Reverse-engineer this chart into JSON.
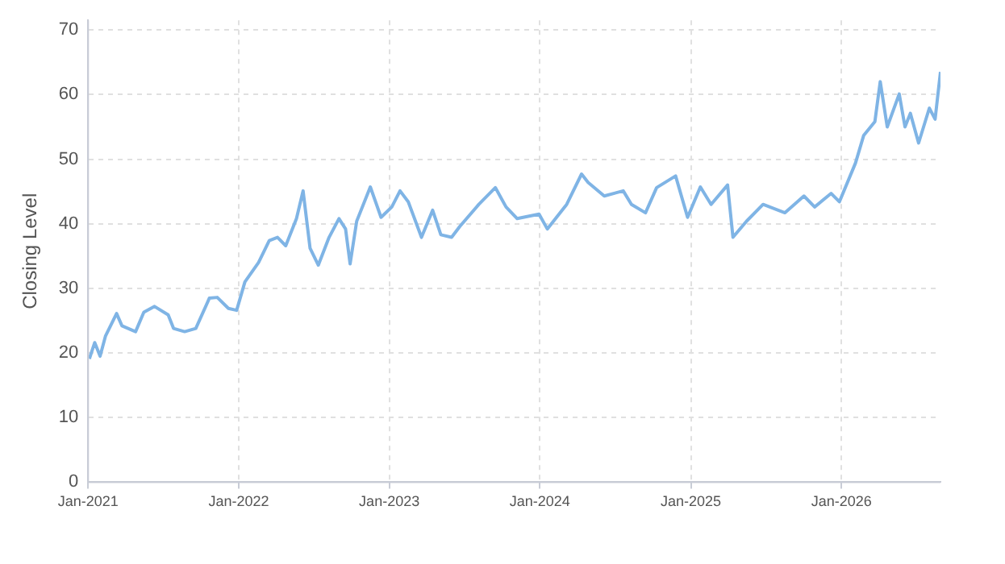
{
  "chart_data": {
    "type": "line",
    "ylabel": "Closing Level",
    "x": [
      "2021-01-04",
      "2021-01-17",
      "2021-01-30",
      "2021-02-12",
      "2021-03-11",
      "2021-03-24",
      "2021-04-26",
      "2021-05-16",
      "2021-06-11",
      "2021-07-14",
      "2021-07-27",
      "2021-08-23",
      "2021-09-19",
      "2021-10-22",
      "2021-11-10",
      "2021-12-07",
      "2021-12-27",
      "2022-01-16",
      "2022-02-18",
      "2022-03-16",
      "2022-04-05",
      "2022-04-25",
      "2022-05-21",
      "2022-06-06",
      "2022-06-23",
      "2022-07-13",
      "2022-08-08",
      "2022-09-01",
      "2022-09-17",
      "2022-09-28",
      "2022-10-14",
      "2022-11-16",
      "2022-12-12",
      "2023-01-07",
      "2023-01-27",
      "2023-02-16",
      "2023-03-20",
      "2023-04-16",
      "2023-05-06",
      "2023-06-01",
      "2023-06-21",
      "2023-08-06",
      "2023-09-15",
      "2023-10-11",
      "2023-11-07",
      "2023-12-30",
      "2024-01-19",
      "2024-03-06",
      "2024-04-11",
      "2024-04-27",
      "2024-06-05",
      "2024-07-21",
      "2024-08-10",
      "2024-09-13",
      "2024-10-10",
      "2024-11-25",
      "2024-12-24",
      "2025-01-24",
      "2025-02-19",
      "2025-03-31",
      "2025-04-13",
      "2025-05-16",
      "2025-06-25",
      "2025-08-17",
      "2025-10-02",
      "2025-10-28",
      "2025-12-07",
      "2025-12-27",
      "2026-02-04",
      "2026-02-24",
      "2026-03-23",
      "2026-04-05",
      "2026-04-22",
      "2026-05-21",
      "2026-06-04",
      "2026-06-17",
      "2026-07-07",
      "2026-08-02",
      "2026-08-16",
      "2026-08-29"
    ],
    "series": [
      {
        "color": "#7fb4e5",
        "values": [
          19.1,
          21.6,
          19.5,
          22.6,
          26.1,
          24.2,
          23.3,
          26.3,
          27.2,
          25.9,
          23.8,
          23.3,
          23.8,
          28.5,
          28.6,
          26.9,
          26.6,
          31.0,
          34.0,
          37.4,
          37.9,
          36.6,
          40.8,
          45.1,
          36.2,
          33.6,
          37.9,
          40.8,
          39.2,
          33.8,
          40.4,
          45.7,
          41.0,
          42.6,
          45.1,
          43.4,
          37.9,
          42.1,
          38.3,
          37.9,
          39.6,
          43.0,
          45.6,
          42.6,
          40.8,
          41.5,
          39.2,
          43.0,
          47.7,
          46.4,
          44.3,
          45.1,
          43.0,
          41.7,
          45.6,
          47.4,
          41.0,
          45.7,
          43.0,
          46.0,
          37.9,
          40.4,
          43.0,
          41.7,
          44.3,
          42.6,
          44.7,
          43.4,
          49.4,
          53.7,
          55.8,
          62.0,
          55.0,
          60.1,
          55.0,
          57.1,
          52.5,
          57.9,
          56.2,
          63.5
        ]
      }
    ],
    "xlim": [
      "2021-01-01",
      "2026-08-29"
    ],
    "xticks": [
      {
        "value": "2021-01-01",
        "label": "Jan-2021"
      },
      {
        "value": "2022-01-01",
        "label": "Jan-2022"
      },
      {
        "value": "2023-01-01",
        "label": "Jan-2023"
      },
      {
        "value": "2024-01-01",
        "label": "Jan-2024"
      },
      {
        "value": "2025-01-01",
        "label": "Jan-2025"
      },
      {
        "value": "2026-01-01",
        "label": "Jan-2026"
      }
    ],
    "ylim": [
      0,
      71.5
    ],
    "yticks": [
      0,
      10,
      20,
      30,
      40,
      50,
      60,
      70
    ],
    "grid": true,
    "legend": false,
    "marker": "none",
    "line_style": "solid"
  }
}
